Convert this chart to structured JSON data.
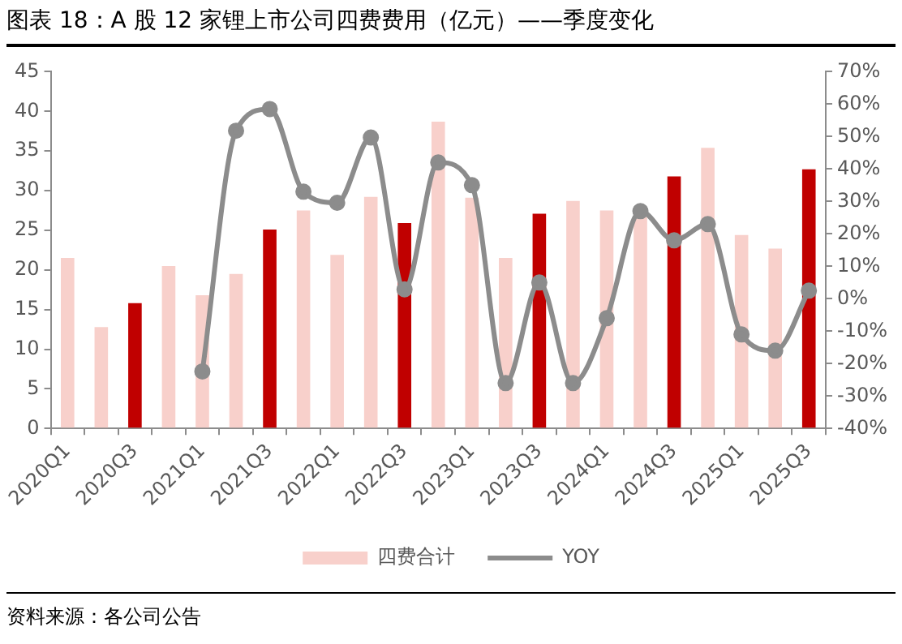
{
  "chart_data": {
    "type": "bar",
    "title": "图表 18：A 股 12 家锂上市公司四费费用（亿元）——季度变化",
    "categories": [
      "2020Q1",
      null,
      "2020Q3",
      null,
      "2021Q1",
      null,
      "2021Q3",
      null,
      "2022Q1",
      null,
      "2022Q3",
      null,
      "2023Q1",
      null,
      "2023Q3",
      null,
      "2024Q1",
      null,
      "2024Q3",
      null,
      "2025Q1",
      null,
      "2025Q3"
    ],
    "series": [
      {
        "name": "四费合计",
        "color": "#f8d0cb",
        "colors": [
          "#f8d0cb",
          "#f8d0cb",
          "#c00000",
          "#f8d0cb",
          "#f8d0cb",
          "#f8d0cb",
          "#c00000",
          "#f8d0cb",
          "#f8d0cb",
          "#f8d0cb",
          "#c00000",
          "#f8d0cb",
          "#f8d0cb",
          "#f8d0cb",
          "#c00000",
          "#f8d0cb",
          "#f8d0cb",
          "#f8d0cb",
          "#c00000",
          "#f8d0cb",
          "#f8d0cb",
          "#f8d0cb",
          "#c00000"
        ],
        "values": [
          21.5,
          12.8,
          15.8,
          20.5,
          16.8,
          19.5,
          25.1,
          27.5,
          21.9,
          29.2,
          25.9,
          38.7,
          29.1,
          21.5,
          27.1,
          28.7,
          27.5,
          26.7,
          31.8,
          35.4,
          24.4,
          22.7,
          32.7
        ]
      },
      {
        "name": "YOY",
        "type": "line",
        "axis": "y2",
        "color": "#8c8c8c",
        "values": [
          null,
          null,
          null,
          null,
          -22.4,
          51.8,
          58.5,
          33,
          29.6,
          49.7,
          2.9,
          42,
          35,
          -26,
          5,
          -26,
          -6,
          27,
          18,
          23,
          -11,
          -16,
          2.5
        ]
      }
    ],
    "ylim": [
      0,
      45
    ],
    "yticks": [
      0,
      5,
      10,
      15,
      20,
      25,
      30,
      35,
      40,
      45
    ],
    "y2lim": [
      -40,
      70
    ],
    "y2ticks": [
      {
        "value": -40,
        "label": "-40%"
      },
      {
        "value": -30,
        "label": "-30%"
      },
      {
        "value": -20,
        "label": "-20%"
      },
      {
        "value": -10,
        "label": "-10%"
      },
      {
        "value": 0,
        "label": "0%"
      },
      {
        "value": 10,
        "label": "10%"
      },
      {
        "value": 20,
        "label": "20%"
      },
      {
        "value": 30,
        "label": "30%"
      },
      {
        "value": 40,
        "label": "40%"
      },
      {
        "value": 50,
        "label": "50%"
      },
      {
        "value": 60,
        "label": "60%"
      },
      {
        "value": 70,
        "label": "70%"
      }
    ],
    "grid": false,
    "legend": "bottom",
    "marker": "circle",
    "line_style": "solid",
    "annotations": [
      "资料来源：各公司公告"
    ]
  }
}
